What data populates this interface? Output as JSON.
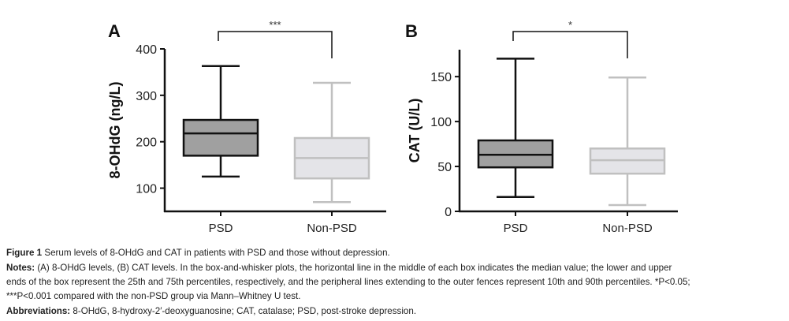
{
  "chart_data": [
    {
      "type": "box",
      "panel_label": "A",
      "ylabel": "8-OHdG (ng/L)",
      "ylim": [
        50,
        400
      ],
      "yticks": [
        100,
        200,
        300,
        400
      ],
      "categories": [
        "PSD",
        "Non-PSD"
      ],
      "boxes": [
        {
          "category": "PSD",
          "p10": 125,
          "q1": 170,
          "median": 218,
          "q3": 247,
          "p90": 363,
          "fill": "#a0a0a0",
          "stroke": "#111111"
        },
        {
          "category": "Non-PSD",
          "p10": 70,
          "q1": 121,
          "median": 165,
          "q3": 208,
          "p90": 327,
          "fill": "#e4e4e8",
          "stroke": "#c0c0c0"
        }
      ],
      "significance": {
        "label": "***",
        "between": [
          "PSD",
          "Non-PSD"
        ]
      },
      "grid": false
    },
    {
      "type": "box",
      "panel_label": "B",
      "ylabel": "CAT (U/L)",
      "ylim": [
        0,
        180
      ],
      "yticks": [
        0,
        50,
        100,
        150
      ],
      "categories": [
        "PSD",
        "Non-PSD"
      ],
      "boxes": [
        {
          "category": "PSD",
          "p10": 16,
          "q1": 49,
          "median": 63,
          "q3": 79,
          "p90": 170,
          "fill": "#a0a0a0",
          "stroke": "#111111"
        },
        {
          "category": "Non-PSD",
          "p10": 7,
          "q1": 42,
          "median": 57,
          "q3": 70,
          "p90": 149,
          "fill": "#e4e4e8",
          "stroke": "#c0c0c0"
        }
      ],
      "significance": {
        "label": "*",
        "between": [
          "PSD",
          "Non-PSD"
        ]
      },
      "grid": false
    }
  ],
  "caption": {
    "figure_label": "Figure 1",
    "figure_text": "Serum levels of 8-OHdG and CAT in patients with PSD and those without depression.",
    "notes_label": "Notes:",
    "notes_line1": "(A) 8-OHdG levels, (B) CAT levels. In the box-and-whisker plots, the horizontal line in the middle of each box indicates the median value; the lower and upper",
    "notes_line2": "ends of the box represent the 25th and 75th percentiles, respectively, and the peripheral lines extending to the outer fences represent 10th and 90th percentiles. *P<0.05;",
    "notes_line3": "***P<0.001 compared with the non-PSD group via Mann–Whitney U test.",
    "abbr_label": "Abbreviations:",
    "abbr_text": "8-OHdG, 8-hydroxy-2′-deoxyguanosine; CAT, catalase; PSD, post-stroke depression."
  }
}
